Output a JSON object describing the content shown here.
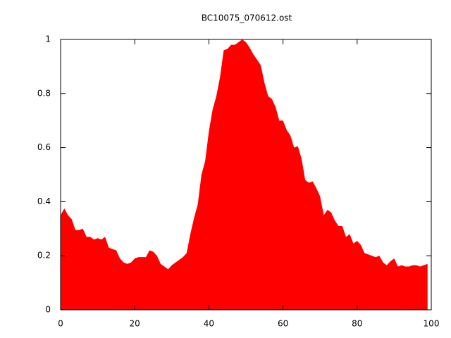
{
  "chart_data": {
    "type": "area",
    "title": "BC10075_070612.ost",
    "color": "#ff0000",
    "x": [
      0,
      1,
      2,
      3,
      4,
      5,
      6,
      7,
      8,
      9,
      10,
      11,
      12,
      13,
      14,
      15,
      16,
      17,
      18,
      19,
      20,
      21,
      22,
      23,
      24,
      25,
      26,
      27,
      28,
      29,
      30,
      31,
      32,
      33,
      34,
      35,
      36,
      37,
      38,
      39,
      40,
      41,
      42,
      43,
      44,
      45,
      46,
      47,
      48,
      49,
      50,
      51,
      52,
      53,
      54,
      55,
      56,
      57,
      58,
      59,
      60,
      61,
      62,
      63,
      64,
      65,
      66,
      67,
      68,
      69,
      70,
      71,
      72,
      73,
      74,
      75,
      76,
      77,
      78,
      79,
      80,
      81,
      82,
      83,
      84,
      85,
      86,
      87,
      88,
      89,
      90,
      91,
      92,
      93,
      94,
      95,
      96,
      97,
      98,
      99
    ],
    "values": [
      0.35,
      0.375,
      0.35,
      0.335,
      0.295,
      0.295,
      0.3,
      0.27,
      0.27,
      0.26,
      0.265,
      0.26,
      0.27,
      0.23,
      0.225,
      0.22,
      0.19,
      0.175,
      0.17,
      0.175,
      0.19,
      0.195,
      0.195,
      0.195,
      0.22,
      0.215,
      0.2,
      0.17,
      0.16,
      0.15,
      0.165,
      0.175,
      0.185,
      0.195,
      0.21,
      0.28,
      0.34,
      0.39,
      0.5,
      0.55,
      0.66,
      0.74,
      0.79,
      0.86,
      0.96,
      0.965,
      0.98,
      0.98,
      0.99,
      1.0,
      0.99,
      0.97,
      0.945,
      0.925,
      0.905,
      0.84,
      0.79,
      0.78,
      0.75,
      0.7,
      0.7,
      0.665,
      0.645,
      0.6,
      0.605,
      0.56,
      0.48,
      0.47,
      0.475,
      0.45,
      0.42,
      0.35,
      0.37,
      0.36,
      0.33,
      0.31,
      0.31,
      0.27,
      0.28,
      0.245,
      0.255,
      0.24,
      0.21,
      0.205,
      0.2,
      0.195,
      0.2,
      0.175,
      0.165,
      0.18,
      0.19,
      0.16,
      0.165,
      0.16,
      0.16,
      0.165,
      0.165,
      0.16,
      0.165,
      0.17
    ],
    "xlim": [
      0,
      100
    ],
    "ylim": [
      0,
      1
    ],
    "xticks": [
      0,
      20,
      40,
      60,
      80,
      100
    ],
    "yticks": [
      0,
      0.2,
      0.4,
      0.6,
      0.8,
      1
    ]
  }
}
